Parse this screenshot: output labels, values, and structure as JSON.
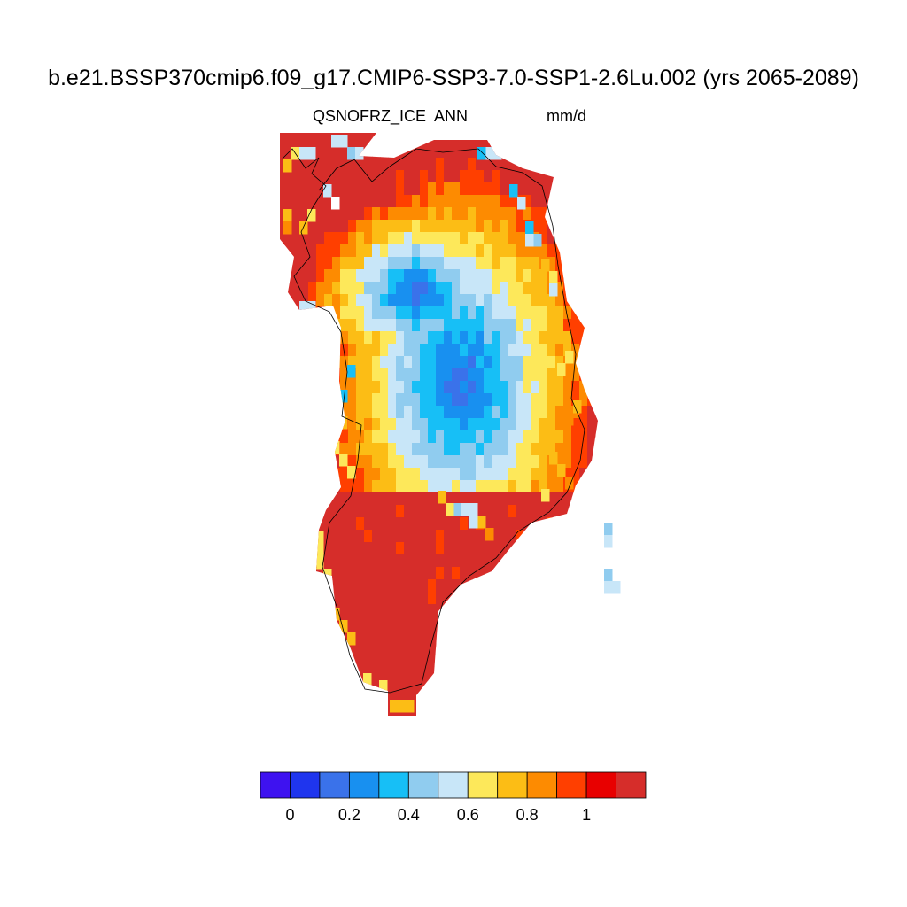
{
  "title": "b.e21.BSSP370cmip6.f09_g17.CMIP6-SSP3-7.0-SSP1-2.6Lu.002 (yrs 2065-2089)",
  "variable": "QSNOFRZ_ICE",
  "season": "ANN",
  "units": "mm/d",
  "map": {
    "region": "Greenland",
    "field_description": "annual mean of the variable over the ice sheet; interior below 0.4, margins above 1",
    "range_min": 0.1,
    "range_max": 1.1
  },
  "colorbar": {
    "colors": [
      "#3e12f0",
      "#1f35ee",
      "#3a72ea",
      "#1890f0",
      "#17bff6",
      "#90ccef",
      "#c8e6f8",
      "#fde85a",
      "#fcbd15",
      "#fd8b01",
      "#ff3f00",
      "#e80000",
      "#d62d2a"
    ],
    "tick_labels": [
      "0",
      "0.2",
      "0.4",
      "0.6",
      "0.8",
      "1"
    ],
    "tick_values": [
      0,
      0.2,
      0.4,
      0.6,
      0.8,
      1.0
    ]
  }
}
